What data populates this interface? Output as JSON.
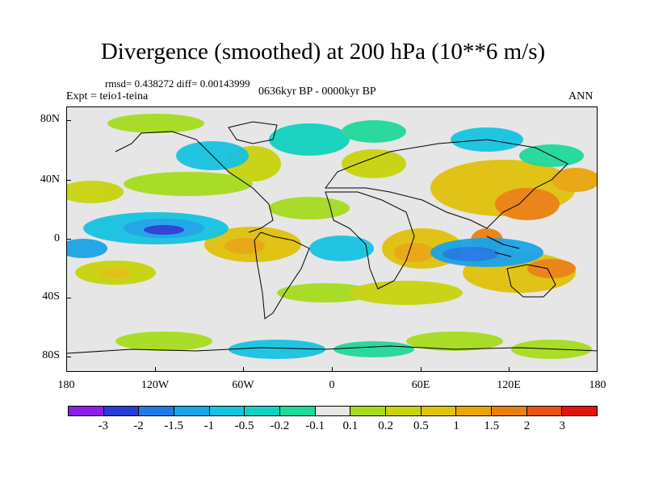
{
  "title": "Divergence (smoothed) at 200 hPa (10**6 m/s)",
  "stats": "rmsd= 0.438272  diff= 0.00143999",
  "experiment": "Expt = teio1-teina",
  "period": "0636kyr BP - 0000kyr BP",
  "season": "ANN",
  "y_axis_labels": [
    "80N",
    "40N",
    "0",
    "40S",
    "80S"
  ],
  "x_axis_labels": [
    "180",
    "120W",
    "60W",
    "0",
    "60E",
    "120E",
    "180"
  ],
  "colorbar": {
    "colors": [
      "#8d1ee8",
      "#2a3cd6",
      "#1e7be6",
      "#1aa3e8",
      "#17c3e0",
      "#12d1c0",
      "#1fd99a",
      "#e6e6e6",
      "#a6dc1e",
      "#c8d40e",
      "#e0c20b",
      "#e9a50c",
      "#ec800f",
      "#e85512",
      "#e2140e"
    ],
    "labels": [
      "-3",
      "-2",
      "-1.5",
      "-1",
      "-0.5",
      "-0.2",
      "-0.1",
      "0.1",
      "0.2",
      "0.5",
      "1",
      "1.5",
      "2",
      "3"
    ]
  }
}
